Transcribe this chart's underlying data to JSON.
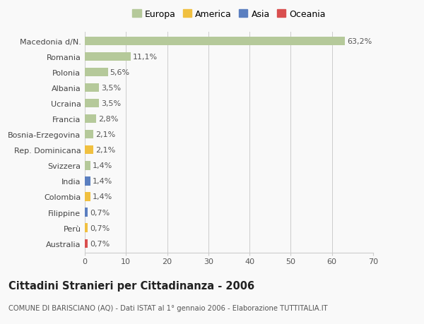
{
  "categories": [
    "Macedonia d/N.",
    "Romania",
    "Polonia",
    "Albania",
    "Ucraina",
    "Francia",
    "Bosnia-Erzegovina",
    "Rep. Dominicana",
    "Svizzera",
    "India",
    "Colombia",
    "Filippine",
    "Perù",
    "Australia"
  ],
  "values": [
    63.2,
    11.1,
    5.6,
    3.5,
    3.5,
    2.8,
    2.1,
    2.1,
    1.4,
    1.4,
    1.4,
    0.7,
    0.7,
    0.7
  ],
  "labels": [
    "63,2%",
    "11,1%",
    "5,6%",
    "3,5%",
    "3,5%",
    "2,8%",
    "2,1%",
    "2,1%",
    "1,4%",
    "1,4%",
    "1,4%",
    "0,7%",
    "0,7%",
    "0,7%"
  ],
  "continents": [
    "Europa",
    "Europa",
    "Europa",
    "Europa",
    "Europa",
    "Europa",
    "Europa",
    "America",
    "Europa",
    "Asia",
    "America",
    "Asia",
    "America",
    "Oceania"
  ],
  "continent_colors": {
    "Europa": "#b5c99a",
    "America": "#f0c040",
    "Asia": "#5b7fc0",
    "Oceania": "#d94f4f"
  },
  "legend_items": [
    "Europa",
    "America",
    "Asia",
    "Oceania"
  ],
  "legend_colors": [
    "#b5c99a",
    "#f0c040",
    "#5b7fc0",
    "#d94f4f"
  ],
  "xlim": [
    0,
    70
  ],
  "xticks": [
    0,
    10,
    20,
    30,
    40,
    50,
    60,
    70
  ],
  "title": "Cittadini Stranieri per Cittadinanza - 2006",
  "subtitle": "COMUNE DI BARISCIANO (AQ) - Dati ISTAT al 1° gennaio 2006 - Elaborazione TUTTITALIA.IT",
  "background_color": "#f9f9f9",
  "bar_height": 0.55,
  "grid_color": "#cccccc",
  "label_fontsize": 8,
  "tick_fontsize": 8,
  "title_fontsize": 10.5
}
